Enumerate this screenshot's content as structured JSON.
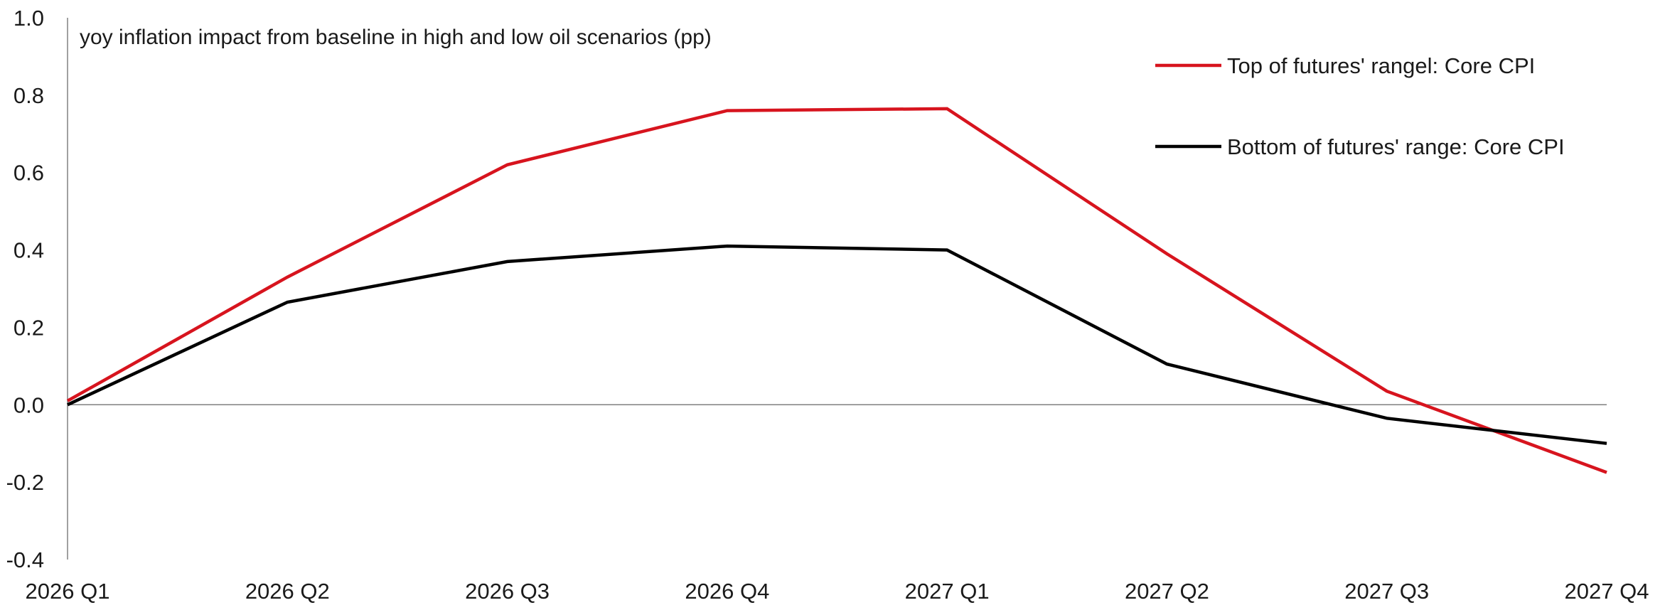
{
  "chart_data": {
    "type": "line",
    "title": "yoy inflation impact from baseline in high and low oil scenarios (pp)",
    "xlabel": "",
    "ylabel": "",
    "categories": [
      "2026 Q1",
      "2026 Q2",
      "2026 Q3",
      "2026 Q4",
      "2027 Q1",
      "2027 Q2",
      "2027 Q3",
      "2027 Q4"
    ],
    "ylim": [
      -0.4,
      1.0
    ],
    "yticks": [
      "1.0",
      "0.8",
      "0.6",
      "0.4",
      "0.2",
      "0.0",
      "-0.2",
      "-0.4"
    ],
    "ytick_values": [
      1.0,
      0.8,
      0.6,
      0.4,
      0.2,
      0.0,
      -0.2,
      -0.4
    ],
    "grid": false,
    "legend_position": "top-right",
    "series": [
      {
        "name": "Top of futures' rangel: Core CPI",
        "color": "#d7141e",
        "values": [
          0.01,
          0.33,
          0.62,
          0.76,
          0.765,
          0.39,
          0.035,
          -0.175
        ]
      },
      {
        "name": "Bottom of futures' range: Core CPI",
        "color": "#000000",
        "values": [
          0.0,
          0.265,
          0.37,
          0.41,
          0.4,
          0.105,
          -0.035,
          -0.1
        ]
      }
    ]
  }
}
